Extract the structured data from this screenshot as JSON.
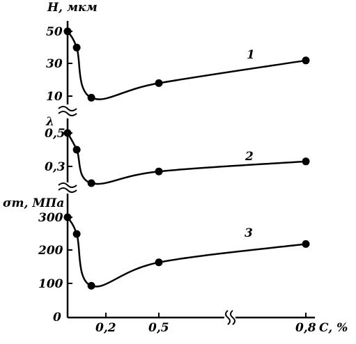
{
  "chart_data": {
    "type": "line",
    "x_axis": {
      "label": "C, %",
      "ticks": [
        "0,2",
        "0,5",
        "0,8"
      ],
      "tick_values": [
        0.2,
        0.5,
        0.8
      ],
      "origin_label": "0",
      "break": true
    },
    "panels": [
      {
        "ylabel": "H, мкм",
        "yticks": [
          "10",
          "30",
          "50"
        ],
        "ytick_values": [
          10,
          30,
          50
        ],
        "curve_label": "1",
        "x": [
          0.0,
          0.05,
          0.13,
          0.5,
          0.8
        ],
        "values": [
          50,
          40,
          9,
          18,
          32
        ]
      },
      {
        "ylabel": "λ",
        "yticks": [
          "0,3",
          "0,5"
        ],
        "ytick_values": [
          0.3,
          0.5
        ],
        "curve_label": "2",
        "x": [
          0.0,
          0.05,
          0.13,
          0.5,
          0.8
        ],
        "values": [
          0.5,
          0.4,
          0.2,
          0.27,
          0.33
        ]
      },
      {
        "ylabel": "σт, МПа",
        "yticks": [
          "0",
          "100",
          "200",
          "300"
        ],
        "ytick_values": [
          0,
          100,
          200,
          300
        ],
        "curve_label": "3",
        "x": [
          0.0,
          0.05,
          0.13,
          0.5,
          0.8
        ],
        "values": [
          300,
          250,
          95,
          165,
          220
        ]
      }
    ]
  }
}
